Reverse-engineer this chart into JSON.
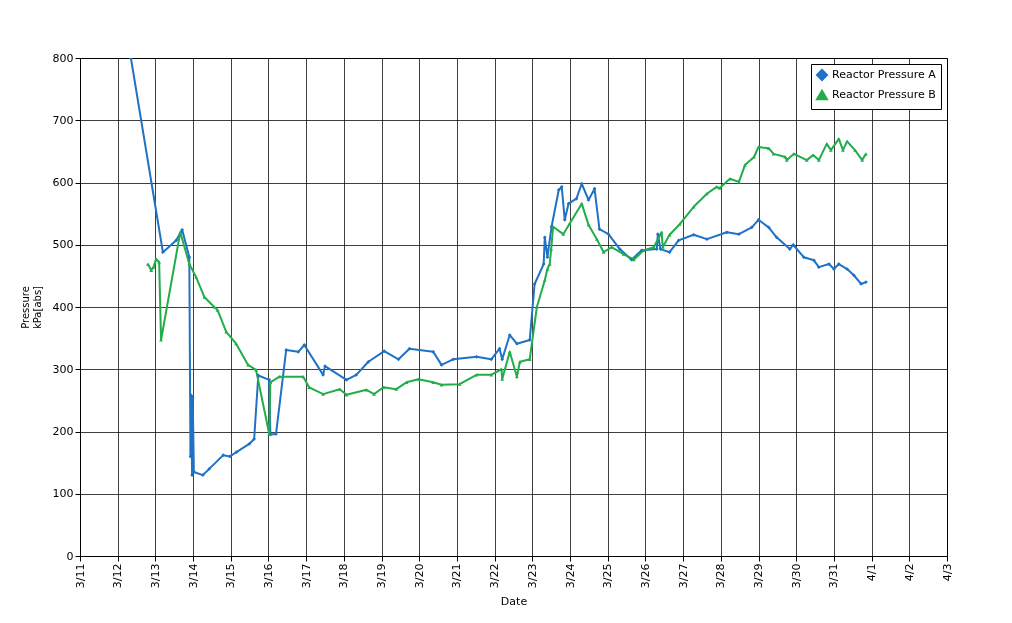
{
  "chart_data": {
    "type": "line",
    "xlabel": "Date",
    "ylabel": "Pressure kPa[abs]",
    "grid": true,
    "legend": "top right",
    "xlim": [
      "--03-11",
      "--04-03"
    ],
    "xticks": [
      {
        "value": "--03-11",
        "label": "3/11"
      },
      {
        "value": "--03-12",
        "label": "3/12"
      },
      {
        "value": "--03-13",
        "label": "3/13"
      },
      {
        "value": "--03-14",
        "label": "3/14"
      },
      {
        "value": "--03-15",
        "label": "3/15"
      },
      {
        "value": "--03-16",
        "label": "3/16"
      },
      {
        "value": "--03-17",
        "label": "3/17"
      },
      {
        "value": "--03-18",
        "label": "3/18"
      },
      {
        "value": "--03-19",
        "label": "3/19"
      },
      {
        "value": "--03-20",
        "label": "3/20"
      },
      {
        "value": "--03-21",
        "label": "3/21"
      },
      {
        "value": "--03-22",
        "label": "3/22"
      },
      {
        "value": "--03-23",
        "label": "3/23"
      },
      {
        "value": "--03-24",
        "label": "3/24"
      },
      {
        "value": "--03-25",
        "label": "3/25"
      },
      {
        "value": "--03-26",
        "label": "3/26"
      },
      {
        "value": "--03-27",
        "label": "3/27"
      },
      {
        "value": "--03-28",
        "label": "3/28"
      },
      {
        "value": "--03-29",
        "label": "3/29"
      },
      {
        "value": "--03-30",
        "label": "3/30"
      },
      {
        "value": "--03-31",
        "label": "3/31"
      },
      {
        "value": "--04-01",
        "label": "4/1"
      },
      {
        "value": "--04-02",
        "label": "4/2"
      },
      {
        "value": "--04-03",
        "label": "4/3"
      }
    ],
    "ylim": [
      0,
      800
    ],
    "yticks": [
      0,
      100,
      200,
      300,
      400,
      500,
      600,
      700,
      800
    ],
    "series": [
      {
        "name": "Reactor Pressure A",
        "color": "#1f72c6",
        "marker": "diamond",
        "x": [
          "--03-12T08:24",
          "--03-13T04:48",
          "--03-13T13:12",
          "--03-13T17:02",
          "--03-13T21:36",
          "--03-13T22:20",
          "--03-13T22:50",
          "--03-13T23:20",
          "--03-13T23:45",
          "--03-14T00:30",
          "--03-14T06:14",
          "--03-14T10:19",
          "--03-14T19:12",
          "--03-14T23:31",
          "--03-15T03:36",
          "--03-15T11:46",
          "--03-15T14:53",
          "--03-15T17:31",
          "--03-16T00:29",
          "--03-16T01:12",
          "--03-16T04:48",
          "--03-16T11:17",
          "--03-16T18:58",
          "--03-16T22:48",
          "--03-17T10:48",
          "--03-17T12:00",
          "--03-18T01:41",
          "--03-18T07:55",
          "--03-18T15:36",
          "--03-19T01:41",
          "--03-19T10:48",
          "--03-19T17:46",
          "--03-20T08:53",
          "--03-20T14:10",
          "--03-20T21:36",
          "--03-21T12:29",
          "--03-21T21:50",
          "--03-22T03:07",
          "--03-22T04:48",
          "--03-22T09:36",
          "--03-22T14:10",
          "--03-22T22:19",
          "--03-23T01:26",
          "--03-23T07:12",
          "--03-23T07:55",
          "--03-23T09:36",
          "--03-23T12:14",
          "--03-23T16:48",
          "--03-23T18:43",
          "--03-23T20:38",
          "--03-23T23:02",
          "--03-24T04:05",
          "--03-24T07:26",
          "--03-24T11:46",
          "--03-24T15:36",
          "--03-24T18:43",
          "--03-25T00:29",
          "--03-25T07:41",
          "--03-25T15:07",
          "--03-25T21:36",
          "--03-26T07:12",
          "--03-26T07:55",
          "--03-26T09:36",
          "--03-26T15:22",
          "--03-26T21:07",
          "--03-27T06:43",
          "--03-27T15:07",
          "--03-28T03:50",
          "--03-28T11:31",
          "--03-28T19:41",
          "--03-29T00:00",
          "--03-29T06:29",
          "--03-29T11:31",
          "--03-29T19:55",
          "--03-29T22:05",
          "--03-30T04:48",
          "--03-30T11:17",
          "--03-30T14:24",
          "--03-30T20:53",
          "--03-31T00:00",
          "--03-31T03:07",
          "--03-31T08:24",
          "--03-31T12:43",
          "--03-31T17:17",
          "--03-31T20:24"
        ],
        "values": [
          800,
          488,
          507,
          524,
          480,
          160,
          258,
          130,
          255,
          135,
          130,
          140,
          162,
          160,
          167,
          180,
          188,
          290,
          283,
          195,
          196,
          331,
          328,
          339,
          291,
          305,
          283,
          291,
          312,
          329,
          316,
          333,
          328,
          307,
          316,
          320,
          316,
          333,
          316,
          355,
          341,
          347,
          437,
          469,
          512,
          480,
          529,
          588,
          593,
          540,
          566,
          574,
          598,
          572,
          590,
          525,
          517,
          493,
          476,
          491,
          493,
          517,
          493,
          488,
          507,
          516,
          509,
          520,
          517,
          528,
          540,
          528,
          512,
          493,
          500,
          480,
          475,
          464,
          469,
          461,
          469,
          461,
          451,
          437,
          440
        ]
      },
      {
        "name": "Reactor Pressure B",
        "color": "#22ad4a",
        "marker": "triangle",
        "x": [
          "--03-12T19:12",
          "--03-12T21:22",
          "--03-12T22:48",
          "--03-13T00:29",
          "--03-13T02:24",
          "--03-13T03:36",
          "--03-13T15:50",
          "--03-13T21:36",
          "--03-14T01:55",
          "--03-14T07:12",
          "--03-14T13:26",
          "--03-14T15:36",
          "--03-14T21:07",
          "--03-15T03:22",
          "--03-15T11:02",
          "--03-15T16:05",
          "--03-16T00:29",
          "--03-16T01:12",
          "--03-16T06:58",
          "--03-16T22:05",
          "--03-17T01:55",
          "--03-17T10:48",
          "--03-17T21:22",
          "--03-18T01:41",
          "--03-18T14:24",
          "--03-18T19:12",
          "--03-19T01:12",
          "--03-19T09:22",
          "--03-19T15:50",
          "--03-19T23:31",
          "--03-20T08:53",
          "--03-20T14:10",
          "--03-21T01:41",
          "--03-21T12:29",
          "--03-21T21:50",
          "--03-22T04:19",
          "--03-22T04:48",
          "--03-22T09:36",
          "--03-22T14:10",
          "--03-22T16:05",
          "--03-22T22:19",
          "--03-23T02:53",
          "--03-23T07:55",
          "--03-23T09:36",
          "--03-23T11:02",
          "--03-23T12:00",
          "--03-23T13:12",
          "--03-23T19:41",
          "--03-23T23:31",
          "--03-24T07:26",
          "--03-24T11:46",
          "--03-24T17:02",
          "--03-24T21:22",
          "--03-25T02:24",
          "--03-25T10:05",
          "--03-25T16:34",
          "--03-25T22:48",
          "--03-26T05:17",
          "--03-26T10:19",
          "--03-26T11:02",
          "--03-26T15:22",
          "--03-26T21:50",
          "--03-27T06:43",
          "--03-27T15:07",
          "--03-27T21:22",
          "--03-27T23:17",
          "--03-28T05:46",
          "--03-28T11:31",
          "--03-28T15:22",
          "--03-28T21:07",
          "--03-29T00:00",
          "--03-29T06:29",
          "--03-29T09:36",
          "--03-29T17:02",
          "--03-29T18:00",
          "--03-29T22:34",
          "--03-30T06:43",
          "--03-30T10:48",
          "--03-30T14:24",
          "--03-30T19:26",
          "--03-30T22:05",
          "--03-31T03:07",
          "--03-31T05:46",
          "--03-31T08:24",
          "--03-31T13:26",
          "--03-31T18:00",
          "--03-31T20:24"
        ],
        "values": [
          469,
          459,
          464,
          477,
          472,
          347,
          520,
          469,
          448,
          416,
          400,
          395,
          360,
          341,
          307,
          299,
          196,
          279,
          288,
          288,
          271,
          260,
          268,
          259,
          267,
          260,
          271,
          268,
          279,
          284,
          279,
          275,
          276,
          291,
          291,
          300,
          284,
          328,
          288,
          312,
          316,
          400,
          443,
          461,
          469,
          493,
          529,
          517,
          533,
          566,
          532,
          509,
          488,
          496,
          485,
          476,
          491,
          496,
          520,
          496,
          516,
          533,
          561,
          582,
          593,
          591,
          606,
          601,
          628,
          641,
          657,
          655,
          646,
          641,
          636,
          646,
          636,
          644,
          636,
          662,
          652,
          670,
          652,
          666,
          652,
          636,
          646
        ]
      }
    ]
  }
}
